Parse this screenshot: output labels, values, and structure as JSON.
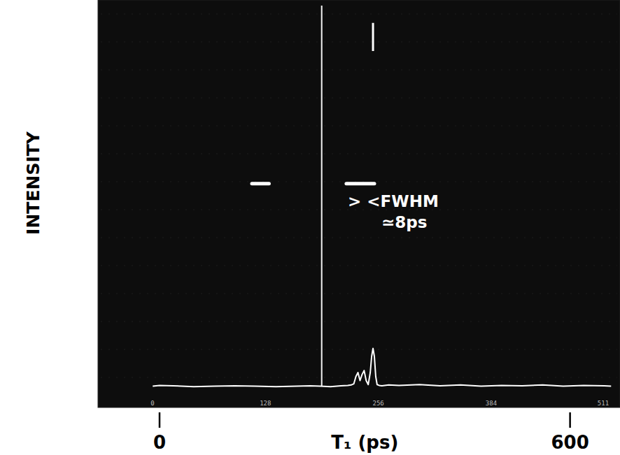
{
  "chart_data": {
    "type": "line",
    "x_label": "T₁ (ps)",
    "y_label": "INTENSITY",
    "xlim": [
      -90,
      673
    ],
    "xticks": [
      0,
      600
    ],
    "ylim": [
      0,
      100
    ],
    "tick_labels": "x",
    "color": "#ffffff",
    "x": [
      -10,
      0,
      20,
      50,
      80,
      110,
      140,
      170,
      200,
      220,
      235,
      250,
      265,
      275,
      280,
      284,
      287,
      290,
      293,
      296,
      299,
      302,
      305,
      308,
      310,
      312,
      314,
      316,
      318,
      321,
      325,
      335,
      350,
      380,
      410,
      440,
      470,
      500,
      530,
      560,
      590,
      620,
      650,
      660
    ],
    "values": [
      4.6,
      4.8,
      4.7,
      4.5,
      4.6,
      4.7,
      4.6,
      4.5,
      4.6,
      4.7,
      4.6,
      4.5,
      4.7,
      4.8,
      4.9,
      5.2,
      7,
      8,
      6,
      7.5,
      8.5,
      6,
      5,
      8,
      12,
      14,
      12,
      7,
      5,
      4.8,
      4.7,
      4.9,
      4.8,
      5,
      4.7,
      4.9,
      4.6,
      4.8,
      4.7,
      4.9,
      4.6,
      4.8,
      4.7,
      4.6
    ],
    "cursor_x": 237,
    "peak_marker": {
      "x": 312,
      "y": [
        88,
        95
      ]
    },
    "fwhm_marks": {
      "level": 55,
      "spans": [
        [
          135,
          160
        ],
        [
          273,
          314
        ]
      ]
    },
    "annotations": [
      "> <FWHM",
      "≃8ps"
    ],
    "channel_lim": [
      0,
      511
    ],
    "channel_ticks": [
      0,
      128,
      256,
      384,
      511
    ]
  }
}
